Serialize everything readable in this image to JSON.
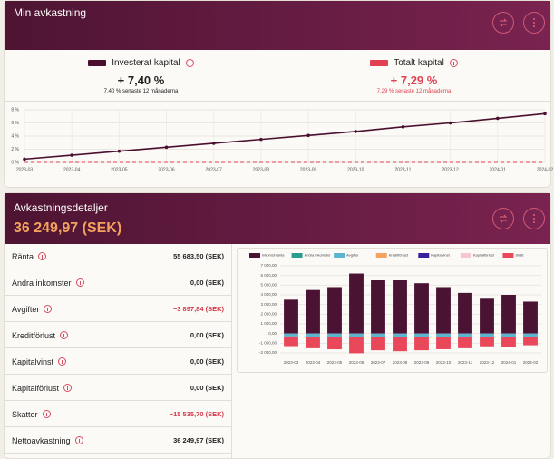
{
  "header": {
    "title": "Min avkastning"
  },
  "summary": [
    {
      "value": "+ 7,40 %",
      "note": "7,40 % senaste 12 månaderna"
    },
    {
      "value": "+ 7,29 %",
      "note": "7,29 % senaste 12 månaderna"
    }
  ],
  "details": {
    "title": "Avkastningsdetaljer",
    "total": "36 249,97 (SEK)",
    "rows": [
      [
        "Ränta",
        "55 683,50 (SEK)"
      ],
      [
        "Andra inkomster",
        "0,00 (SEK)"
      ],
      [
        "Avgifter",
        "−3 897,84 (SEK)"
      ],
      [
        "Kreditförlust",
        "0,00 (SEK)"
      ],
      [
        "Kapitalvinst",
        "0,00 (SEK)"
      ],
      [
        "Kapitalförlust",
        "0,00 (SEK)"
      ],
      [
        "Skatter",
        "−15 535,70 (SEK)"
      ],
      [
        "Nettoavkastning",
        "36 249,97 (SEK)"
      ]
    ]
  },
  "chart_data": [
    {
      "type": "line",
      "categories": [
        "2023-03",
        "2023-04",
        "2023-05",
        "2023-06",
        "2023-07",
        "2023-08",
        "2023-09",
        "2023-10",
        "2023-11",
        "2023-12",
        "2024-01",
        "2024-02"
      ],
      "series": [
        {
          "name": "Investerat kapital",
          "color": "#4a0f2e",
          "values": [
            0.5,
            1.1,
            1.7,
            2.3,
            2.9,
            3.5,
            4.1,
            4.7,
            5.4,
            6.0,
            6.7,
            7.4
          ]
        },
        {
          "name": "Totalt kapital",
          "color": "#e0404f",
          "dashed": true,
          "values": [
            0,
            0,
            0,
            0,
            0,
            0,
            0,
            0,
            0,
            0,
            0,
            0
          ]
        }
      ],
      "ylim": [
        0,
        8
      ],
      "yticks": [
        {
          "value": 0,
          "label": "0 %"
        },
        {
          "value": 2,
          "label": "2 %"
        },
        {
          "value": 4,
          "label": "4 %"
        },
        {
          "value": 6,
          "label": "6 %"
        },
        {
          "value": 8,
          "label": "8 %"
        }
      ],
      "grid": true
    },
    {
      "type": "bar",
      "stacked": true,
      "categories": [
        "2023-03",
        "2023-04",
        "2023-05",
        "2023-06",
        "2023-07",
        "2023-08",
        "2023-09",
        "2023-10",
        "2023-11",
        "2023-12",
        "2024-01",
        "2024-02"
      ],
      "series": [
        {
          "name": "Inkomst-ränta",
          "color": "#4a1233",
          "values": [
            3500,
            4500,
            4800,
            6200,
            5500,
            5500,
            5200,
            4800,
            4200,
            3600,
            4000,
            3300
          ]
        },
        {
          "name": "Andra inkomster",
          "color": "#2a9d8f",
          "values": [
            0,
            0,
            0,
            0,
            0,
            0,
            0,
            0,
            0,
            0,
            0,
            0
          ]
        },
        {
          "name": "Avgifter",
          "color": "#5bb5cf",
          "values": [
            -300,
            -320,
            -330,
            -340,
            -330,
            -330,
            -330,
            -320,
            -320,
            -320,
            -320,
            -310
          ]
        },
        {
          "name": "Kreditförlust",
          "color": "#f4a261",
          "values": [
            0,
            0,
            0,
            0,
            0,
            0,
            0,
            0,
            0,
            0,
            0,
            0
          ]
        },
        {
          "name": "Kapitalvinst",
          "color": "#3a1f9e",
          "values": [
            0,
            0,
            0,
            0,
            0,
            0,
            0,
            0,
            0,
            0,
            0,
            0
          ]
        },
        {
          "name": "Kapitalförlust",
          "color": "#f7c6cf",
          "values": [
            0,
            0,
            0,
            0,
            0,
            0,
            0,
            0,
            0,
            0,
            0,
            0
          ]
        },
        {
          "name": "Skatt",
          "color": "#e8485a",
          "values": [
            -1000,
            -1200,
            -1300,
            -1700,
            -1400,
            -1500,
            -1400,
            -1300,
            -1200,
            -1000,
            -1100,
            -900
          ]
        }
      ],
      "ylim": [
        -2000,
        7000
      ],
      "yticks": [
        {
          "value": -2000,
          "label": "-2 000,00"
        },
        {
          "value": -1000,
          "label": "-1 000,00"
        },
        {
          "value": 0,
          "label": "0,00"
        },
        {
          "value": 1000,
          "label": "1 000,00"
        },
        {
          "value": 2000,
          "label": "2 000,00"
        },
        {
          "value": 3000,
          "label": "3 000,00"
        },
        {
          "value": 4000,
          "label": "4 000,00"
        },
        {
          "value": 5000,
          "label": "5 000,00"
        },
        {
          "value": 6000,
          "label": "6 000,00"
        },
        {
          "value": 7000,
          "label": "7 000,00"
        }
      ],
      "grid": true
    }
  ]
}
